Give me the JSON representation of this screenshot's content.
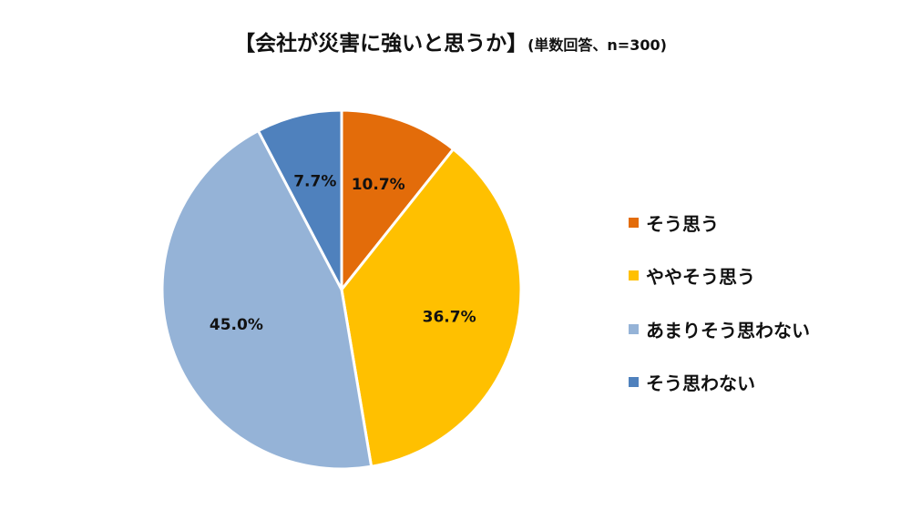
{
  "chart_data": {
    "type": "pie",
    "title": "【会社が災害に強いと思うか】",
    "subtitle": "(単数回答、n=300)",
    "categories": [
      "そう思う",
      "ややそう思う",
      "あまりそう思わない",
      "そう思わない"
    ],
    "values": [
      10.7,
      36.7,
      45.0,
      7.7
    ],
    "value_labels": [
      "10.7%",
      "36.7%",
      "45.0%",
      "7.7%"
    ],
    "colors": [
      "#E36C0A",
      "#FFC000",
      "#95B3D7",
      "#4F81BD"
    ],
    "legend_position": "right",
    "start_angle": "top",
    "direction": "clockwise"
  }
}
